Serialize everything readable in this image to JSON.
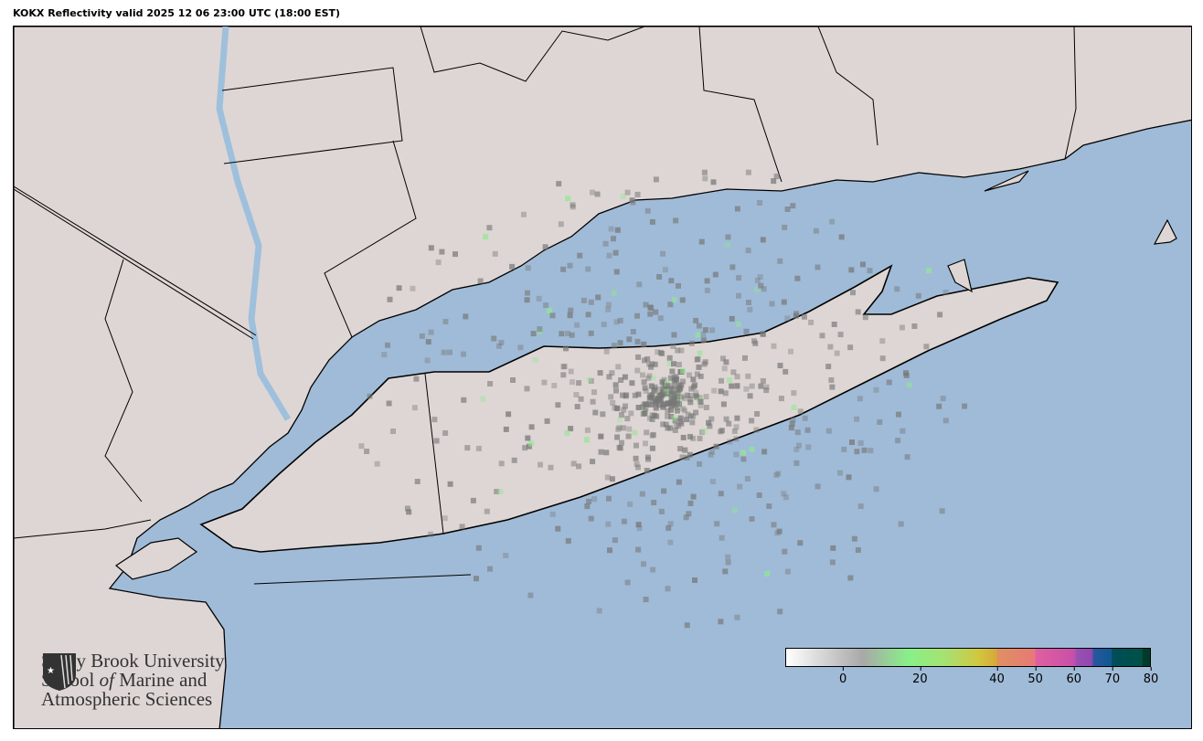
{
  "title": "KOKX Reflectivity valid 2025 12 06 23:00 UTC (18:00 EST)",
  "logo": {
    "line1": "Stony Brook University",
    "line2a": "School ",
    "line2b": "of",
    "line2c": " Marine and",
    "line3": "Atmospheric Sciences"
  },
  "colors": {
    "ocean": "#9fbbd7",
    "land": "#ddd6d4",
    "water_inland": "#9fc0dc",
    "borders": "#000000"
  },
  "colorbar": {
    "units_min": -15,
    "units_max": 80,
    "ticks": [
      {
        "value": 0,
        "label": "0"
      },
      {
        "value": 20,
        "label": "20"
      },
      {
        "value": 40,
        "label": "40"
      },
      {
        "value": 50,
        "label": "50"
      },
      {
        "value": 60,
        "label": "60"
      },
      {
        "value": 70,
        "label": "70"
      },
      {
        "value": 80,
        "label": "80"
      }
    ],
    "stops": [
      {
        "value": -15,
        "color": "#ffffff"
      },
      {
        "value": 5,
        "color": "#a8a8a8"
      },
      {
        "value": 17,
        "color": "#88f088"
      },
      {
        "value": 27,
        "color": "#a8e070"
      },
      {
        "value": 35,
        "color": "#d0c840"
      },
      {
        "value": 40,
        "color": "#d8a838"
      },
      {
        "value": 40.1,
        "color": "#e09060"
      },
      {
        "value": 50,
        "color": "#e87878"
      },
      {
        "value": 50.1,
        "color": "#e060a0"
      },
      {
        "value": 60,
        "color": "#c850a8"
      },
      {
        "value": 61,
        "color": "#9850b0"
      },
      {
        "value": 65,
        "color": "#9048b0"
      },
      {
        "value": 65.1,
        "color": "#2858a0"
      },
      {
        "value": 70,
        "color": "#105890"
      },
      {
        "value": 70.1,
        "color": "#004e58"
      },
      {
        "value": 78,
        "color": "#005048"
      },
      {
        "value": 78.1,
        "color": "#003a28"
      },
      {
        "value": 80,
        "color": "#003a28"
      }
    ]
  }
}
